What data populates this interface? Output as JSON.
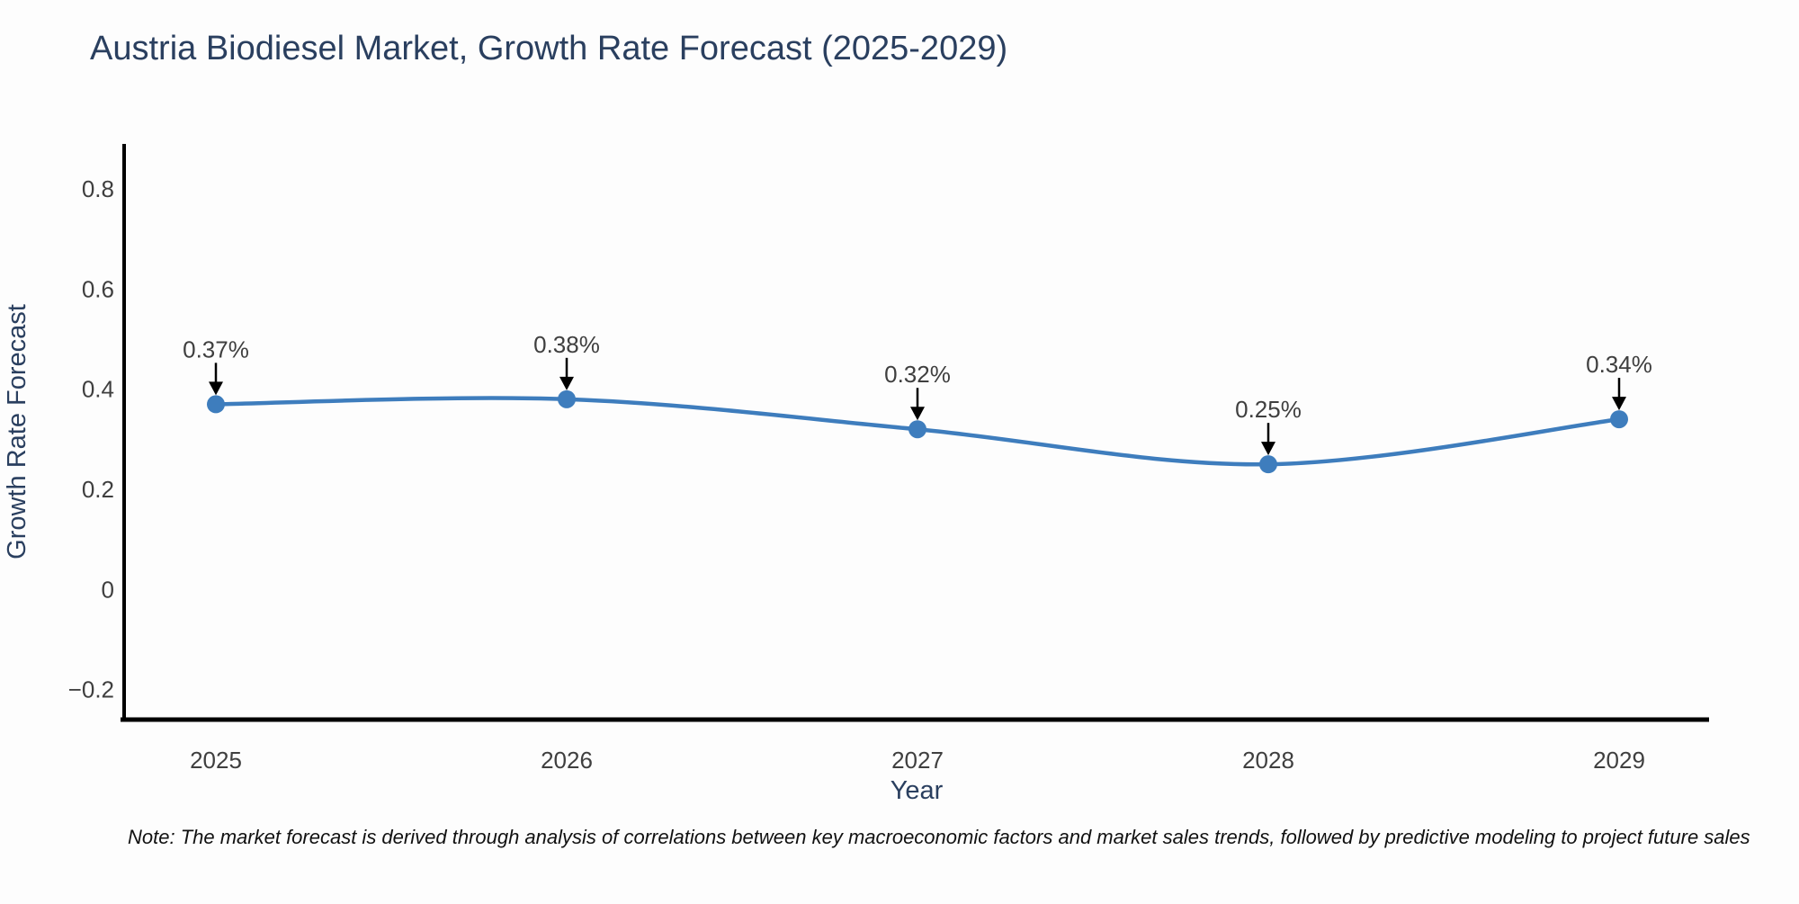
{
  "title": "Austria Biodiesel Market, Growth Rate Forecast (2025-2029)",
  "note_text": "Note: The market forecast is derived through analysis of correlations between key macroeconomic factors and market sales trends, followed by predictive modeling to project future sales",
  "chart_data": {
    "type": "line",
    "title": "Austria Biodiesel Market, Growth Rate Forecast (2025-2029)",
    "xlabel": "Year",
    "ylabel": "Growth Rate Forecast",
    "categories": [
      "2025",
      "2026",
      "2027",
      "2028",
      "2029"
    ],
    "series": [
      {
        "name": "Growth Rate Forecast",
        "values": [
          0.37,
          0.38,
          0.32,
          0.25,
          0.34
        ]
      }
    ],
    "point_labels": [
      "0.37%",
      "0.38%",
      "0.32%",
      "0.25%",
      "0.34%"
    ],
    "ytick_values": [
      0.8,
      0.6,
      0.4,
      0.2,
      0,
      -0.2
    ],
    "ytick_labels": [
      "0.8",
      "0.6",
      "0.4",
      "0.2",
      "0",
      "−0.2"
    ],
    "ylim": [
      -0.26,
      0.89
    ],
    "grid": false,
    "legend": "none",
    "line_style": "spline",
    "colors": {
      "line": "#3E7DBD",
      "marker": "#3E7DBD",
      "arrow": "#000000",
      "axis_line": "#000000",
      "title_text": "#2a3f5f",
      "axis_title_text": "#2a3f5f",
      "tick_text": "#3f3f3f",
      "annotation_text": "#3f3f3f",
      "background": "#fdfdfd"
    }
  }
}
